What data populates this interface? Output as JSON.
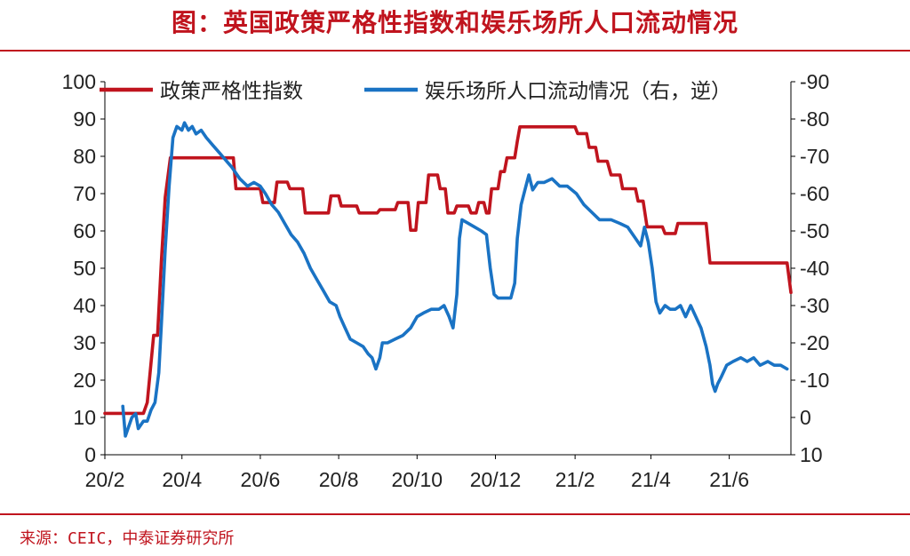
{
  "header": {
    "title": "图：英国政策严格性指数和娱乐场所人口流动情况"
  },
  "footer": {
    "source": "来源：CEIC，中泰证券研究所"
  },
  "chart_data": {
    "type": "line",
    "title": "图：英国政策严格性指数和娱乐场所人口流动情况",
    "x_tick_labels": [
      "20/2",
      "20/4",
      "20/6",
      "20/8",
      "20/10",
      "20/12",
      "21/2",
      "21/4",
      "21/6"
    ],
    "x_tick_dates": [
      "2020-02-01",
      "2020-04-01",
      "2020-06-01",
      "2020-08-01",
      "2020-10-01",
      "2020-12-01",
      "2021-02-01",
      "2021-04-01",
      "2021-06-01"
    ],
    "x_range": [
      "2020-02-01",
      "2021-07-19"
    ],
    "left_axis": {
      "range": [
        0,
        100
      ],
      "ticks": [
        0,
        10,
        20,
        30,
        40,
        50,
        60,
        70,
        80,
        90,
        100
      ]
    },
    "right_axis": {
      "inverted": true,
      "range": [
        10,
        -90
      ],
      "ticks": [
        10,
        0,
        -10,
        -20,
        -30,
        -40,
        -50,
        -60,
        -70,
        -80,
        -90
      ]
    },
    "legend_position": "top",
    "grid": false,
    "series": [
      {
        "name": "政策严格性指数",
        "axis": "left",
        "color": "#c0141e",
        "points": [
          [
            "2020-02-01",
            11.1
          ],
          [
            "2020-03-02",
            11.1
          ],
          [
            "2020-03-05",
            14
          ],
          [
            "2020-03-10",
            32
          ],
          [
            "2020-03-13",
            32
          ],
          [
            "2020-03-16",
            52
          ],
          [
            "2020-03-19",
            69
          ],
          [
            "2020-03-23",
            79.6
          ],
          [
            "2020-05-11",
            79.6
          ],
          [
            "2020-05-13",
            71.3
          ],
          [
            "2020-06-01",
            71.3
          ],
          [
            "2020-06-03",
            67.6
          ],
          [
            "2020-06-12",
            67.6
          ],
          [
            "2020-06-14",
            73.1
          ],
          [
            "2020-06-22",
            73.1
          ],
          [
            "2020-06-24",
            71.3
          ],
          [
            "2020-07-04",
            71.3
          ],
          [
            "2020-07-06",
            64.8
          ],
          [
            "2020-07-24",
            64.8
          ],
          [
            "2020-07-26",
            69.4
          ],
          [
            "2020-08-01",
            69.4
          ],
          [
            "2020-08-03",
            66.7
          ],
          [
            "2020-08-15",
            66.7
          ],
          [
            "2020-08-17",
            64.8
          ],
          [
            "2020-08-31",
            64.8
          ],
          [
            "2020-09-02",
            65.7
          ],
          [
            "2020-09-14",
            65.7
          ],
          [
            "2020-09-16",
            67.6
          ],
          [
            "2020-09-24",
            67.6
          ],
          [
            "2020-09-26",
            60.2
          ],
          [
            "2020-09-30",
            60.2
          ],
          [
            "2020-10-02",
            67.6
          ],
          [
            "2020-10-08",
            67.6
          ],
          [
            "2020-10-10",
            75
          ],
          [
            "2020-10-17",
            75
          ],
          [
            "2020-10-19",
            71.3
          ],
          [
            "2020-10-23",
            71.3
          ],
          [
            "2020-10-25",
            64.8
          ],
          [
            "2020-10-30",
            64.8
          ],
          [
            "2020-11-01",
            66.7
          ],
          [
            "2020-11-10",
            66.7
          ],
          [
            "2020-11-12",
            64.8
          ],
          [
            "2020-11-16",
            64.8
          ],
          [
            "2020-11-18",
            67.6
          ],
          [
            "2020-11-22",
            67.6
          ],
          [
            "2020-11-24",
            64.8
          ],
          [
            "2020-11-26",
            64.8
          ],
          [
            "2020-11-28",
            71.3
          ],
          [
            "2020-12-03",
            71.3
          ],
          [
            "2020-12-05",
            75.9
          ],
          [
            "2020-12-08",
            75.9
          ],
          [
            "2020-12-10",
            79.6
          ],
          [
            "2020-12-16",
            79.6
          ],
          [
            "2020-12-18",
            84
          ],
          [
            "2020-12-20",
            87.9
          ],
          [
            "2021-02-01",
            87.9
          ],
          [
            "2021-02-03",
            86.1
          ],
          [
            "2021-02-10",
            86.1
          ],
          [
            "2021-02-12",
            82.4
          ],
          [
            "2021-02-17",
            82.4
          ],
          [
            "2021-02-19",
            78.7
          ],
          [
            "2021-02-26",
            78.7
          ],
          [
            "2021-03-01",
            75
          ],
          [
            "2021-03-08",
            75
          ],
          [
            "2021-03-10",
            71.3
          ],
          [
            "2021-03-20",
            71.3
          ],
          [
            "2021-03-22",
            68
          ],
          [
            "2021-03-26",
            68
          ],
          [
            "2021-03-29",
            61.1
          ],
          [
            "2021-04-10",
            61.1
          ],
          [
            "2021-04-12",
            59.3
          ],
          [
            "2021-04-20",
            59.3
          ],
          [
            "2021-04-22",
            62
          ],
          [
            "2021-05-14",
            62
          ],
          [
            "2021-05-17",
            51.4
          ],
          [
            "2021-07-16",
            51.4
          ],
          [
            "2021-07-19",
            43.5
          ]
        ]
      },
      {
        "name": "娱乐场所人口流动情况（右，逆）",
        "axis": "right",
        "color": "#1a73c4",
        "points": [
          [
            "2020-02-15",
            -3
          ],
          [
            "2020-02-17",
            5
          ],
          [
            "2020-02-19",
            3
          ],
          [
            "2020-02-22",
            0
          ],
          [
            "2020-02-25",
            -1
          ],
          [
            "2020-02-27",
            3
          ],
          [
            "2020-02-29",
            2
          ],
          [
            "2020-03-02",
            1
          ],
          [
            "2020-03-05",
            1
          ],
          [
            "2020-03-08",
            -2
          ],
          [
            "2020-03-11",
            -4
          ],
          [
            "2020-03-14",
            -12
          ],
          [
            "2020-03-16",
            -25
          ],
          [
            "2020-03-19",
            -45
          ],
          [
            "2020-03-22",
            -62
          ],
          [
            "2020-03-25",
            -75
          ],
          [
            "2020-03-28",
            -78
          ],
          [
            "2020-04-01",
            -77
          ],
          [
            "2020-04-03",
            -79
          ],
          [
            "2020-04-06",
            -77
          ],
          [
            "2020-04-09",
            -78
          ],
          [
            "2020-04-12",
            -76
          ],
          [
            "2020-04-16",
            -77
          ],
          [
            "2020-04-20",
            -75
          ],
          [
            "2020-04-25",
            -73
          ],
          [
            "2020-04-30",
            -71
          ],
          [
            "2020-05-05",
            -69
          ],
          [
            "2020-05-10",
            -67
          ],
          [
            "2020-05-16",
            -64
          ],
          [
            "2020-05-22",
            -62
          ],
          [
            "2020-05-27",
            -63
          ],
          [
            "2020-06-01",
            -62
          ],
          [
            "2020-06-05",
            -60
          ],
          [
            "2020-06-10",
            -57
          ],
          [
            "2020-06-15",
            -55
          ],
          [
            "2020-06-20",
            -52
          ],
          [
            "2020-06-25",
            -49
          ],
          [
            "2020-06-30",
            -47
          ],
          [
            "2020-07-05",
            -44
          ],
          [
            "2020-07-10",
            -40
          ],
          [
            "2020-07-15",
            -37
          ],
          [
            "2020-07-20",
            -34
          ],
          [
            "2020-07-25",
            -31
          ],
          [
            "2020-07-30",
            -30
          ],
          [
            "2020-08-02",
            -27
          ],
          [
            "2020-08-06",
            -24
          ],
          [
            "2020-08-10",
            -21
          ],
          [
            "2020-08-15",
            -20
          ],
          [
            "2020-08-20",
            -19
          ],
          [
            "2020-08-24",
            -17
          ],
          [
            "2020-08-27",
            -16
          ],
          [
            "2020-08-30",
            -13
          ],
          [
            "2020-09-02",
            -16
          ],
          [
            "2020-09-04",
            -20
          ],
          [
            "2020-09-08",
            -20
          ],
          [
            "2020-09-14",
            -21
          ],
          [
            "2020-09-20",
            -22
          ],
          [
            "2020-09-26",
            -24
          ],
          [
            "2020-10-01",
            -27
          ],
          [
            "2020-10-06",
            -28
          ],
          [
            "2020-10-12",
            -29
          ],
          [
            "2020-10-18",
            -29
          ],
          [
            "2020-10-22",
            -30
          ],
          [
            "2020-10-26",
            -27
          ],
          [
            "2020-10-29",
            -24
          ],
          [
            "2020-11-01",
            -33
          ],
          [
            "2020-11-03",
            -48
          ],
          [
            "2020-11-05",
            -53
          ],
          [
            "2020-11-10",
            -52
          ],
          [
            "2020-11-15",
            -51
          ],
          [
            "2020-11-20",
            -50
          ],
          [
            "2020-11-24",
            -49
          ],
          [
            "2020-11-27",
            -40
          ],
          [
            "2020-11-30",
            -33
          ],
          [
            "2020-12-03",
            -32
          ],
          [
            "2020-12-08",
            -32
          ],
          [
            "2020-12-13",
            -32
          ],
          [
            "2020-12-16",
            -36
          ],
          [
            "2020-12-18",
            -48
          ],
          [
            "2020-12-21",
            -57
          ],
          [
            "2020-12-24",
            -61
          ],
          [
            "2020-12-27",
            -65
          ],
          [
            "2020-12-30",
            -61
          ],
          [
            "2021-01-03",
            -63
          ],
          [
            "2021-01-08",
            -63
          ],
          [
            "2021-01-14",
            -64
          ],
          [
            "2021-01-20",
            -62
          ],
          [
            "2021-01-26",
            -62
          ],
          [
            "2021-02-02",
            -60
          ],
          [
            "2021-02-08",
            -57
          ],
          [
            "2021-02-14",
            -55
          ],
          [
            "2021-02-20",
            -53
          ],
          [
            "2021-03-01",
            -53
          ],
          [
            "2021-03-08",
            -52
          ],
          [
            "2021-03-14",
            -51
          ],
          [
            "2021-03-20",
            -48
          ],
          [
            "2021-03-24",
            -46
          ],
          [
            "2021-03-27",
            -51
          ],
          [
            "2021-03-30",
            -47
          ],
          [
            "2021-04-02",
            -40
          ],
          [
            "2021-04-05",
            -31
          ],
          [
            "2021-04-08",
            -28
          ],
          [
            "2021-04-12",
            -30
          ],
          [
            "2021-04-16",
            -29
          ],
          [
            "2021-04-20",
            -29
          ],
          [
            "2021-04-24",
            -30
          ],
          [
            "2021-04-28",
            -27
          ],
          [
            "2021-05-02",
            -30
          ],
          [
            "2021-05-06",
            -27
          ],
          [
            "2021-05-10",
            -24
          ],
          [
            "2021-05-14",
            -19
          ],
          [
            "2021-05-17",
            -14
          ],
          [
            "2021-05-19",
            -9
          ],
          [
            "2021-05-21",
            -7
          ],
          [
            "2021-05-23",
            -9
          ],
          [
            "2021-05-26",
            -11
          ],
          [
            "2021-05-30",
            -14
          ],
          [
            "2021-06-04",
            -15
          ],
          [
            "2021-06-10",
            -16
          ],
          [
            "2021-06-15",
            -15
          ],
          [
            "2021-06-20",
            -16
          ],
          [
            "2021-06-25",
            -14
          ],
          [
            "2021-07-01",
            -15
          ],
          [
            "2021-07-06",
            -14
          ],
          [
            "2021-07-11",
            -14
          ],
          [
            "2021-07-16",
            -13
          ]
        ]
      }
    ]
  }
}
